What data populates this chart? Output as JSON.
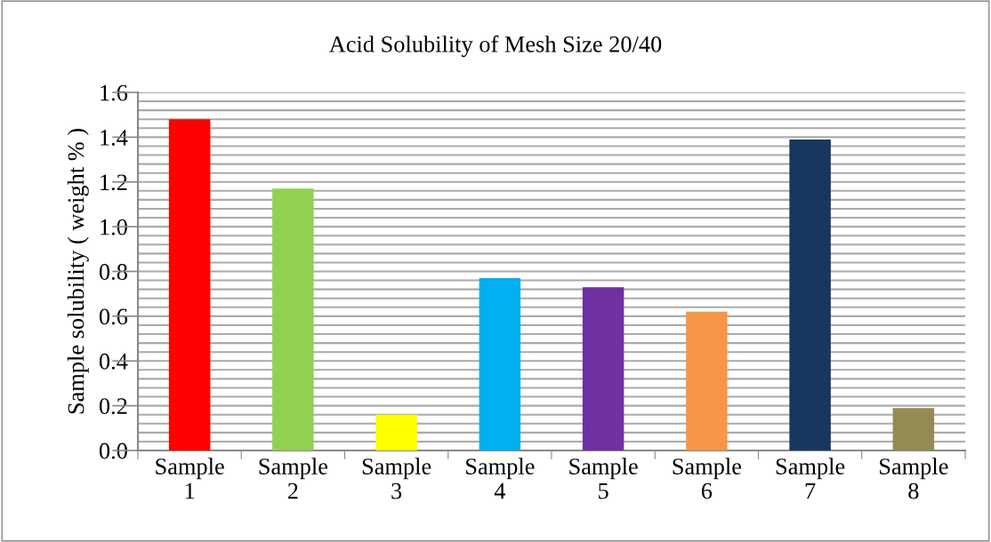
{
  "chart_data": {
    "type": "bar",
    "title": "Acid Solubility of Mesh Size 20/40",
    "ylabel": "Sample solubility ( weight % )",
    "categories": [
      "Sample\n1",
      "Sample\n2",
      "Sample\n3",
      "Sample\n4",
      "Sample\n5",
      "Sample\n6",
      "Sample\n7",
      "Sample\n8"
    ],
    "values": [
      1.48,
      1.17,
      0.16,
      0.77,
      0.73,
      0.62,
      1.39,
      0.19
    ],
    "colors": [
      "#ff0000",
      "#92d050",
      "#ffff00",
      "#00b0f0",
      "#7030a0",
      "#f79646",
      "#17375e",
      "#948a54"
    ],
    "ylim": [
      0,
      1.6
    ],
    "yticks": [
      {
        "value": 0,
        "label": "0.0"
      },
      {
        "value": 0.04,
        "label": null
      },
      {
        "value": 0.08,
        "label": null
      },
      {
        "value": 0.12,
        "label": null
      },
      {
        "value": 0.16,
        "label": null
      },
      {
        "value": 0.2,
        "label": "0.2"
      },
      {
        "value": 0.24,
        "label": null
      },
      {
        "value": 0.28,
        "label": null
      },
      {
        "value": 0.32,
        "label": null
      },
      {
        "value": 0.36,
        "label": null
      },
      {
        "value": 0.4,
        "label": "0.4"
      },
      {
        "value": 0.44,
        "label": null
      },
      {
        "value": 0.48,
        "label": null
      },
      {
        "value": 0.52,
        "label": null
      },
      {
        "value": 0.56,
        "label": null
      },
      {
        "value": 0.6,
        "label": "0.6"
      },
      {
        "value": 0.64,
        "label": null
      },
      {
        "value": 0.68,
        "label": null
      },
      {
        "value": 0.72,
        "label": null
      },
      {
        "value": 0.76,
        "label": null
      },
      {
        "value": 0.8,
        "label": "0.8"
      },
      {
        "value": 0.84,
        "label": null
      },
      {
        "value": 0.88,
        "label": null
      },
      {
        "value": 0.92,
        "label": null
      },
      {
        "value": 0.96,
        "label": null
      },
      {
        "value": 1.0,
        "label": "1.0"
      },
      {
        "value": 1.04,
        "label": null
      },
      {
        "value": 1.08,
        "label": null
      },
      {
        "value": 1.12,
        "label": null
      },
      {
        "value": 1.16,
        "label": null
      },
      {
        "value": 1.2,
        "label": "1.2"
      },
      {
        "value": 1.24,
        "label": null
      },
      {
        "value": 1.28,
        "label": null
      },
      {
        "value": 1.32,
        "label": null
      },
      {
        "value": 1.36,
        "label": null
      },
      {
        "value": 1.4,
        "label": "1.4"
      },
      {
        "value": 1.44,
        "label": null
      },
      {
        "value": 1.48,
        "label": null
      },
      {
        "value": 1.52,
        "label": null
      },
      {
        "value": 1.56,
        "label": null
      },
      {
        "value": 1.6,
        "label": "1.6"
      }
    ],
    "grid": "y",
    "legend": false
  }
}
